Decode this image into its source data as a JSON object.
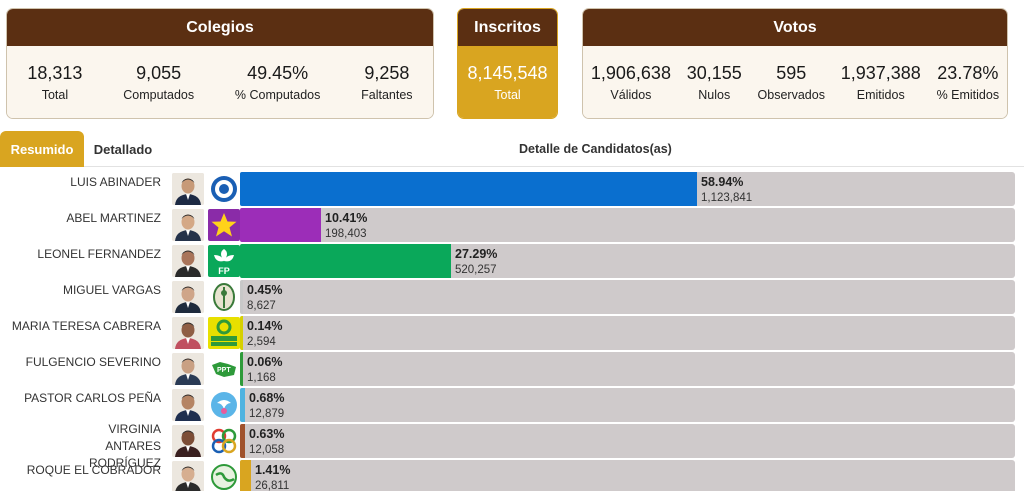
{
  "colegios": {
    "title": "Colegios",
    "stats": [
      {
        "value": "18,313",
        "label": "Total"
      },
      {
        "value": "9,055",
        "label": "Computados"
      },
      {
        "value": "49.45%",
        "label": "% Computados"
      },
      {
        "value": "9,258",
        "label": "Faltantes"
      }
    ]
  },
  "inscritos": {
    "title": "Inscritos",
    "value": "8,145,548",
    "label": "Total"
  },
  "votos": {
    "title": "Votos",
    "stats": [
      {
        "value": "1,906,638",
        "label": "Válidos"
      },
      {
        "value": "30,155",
        "label": "Nulos"
      },
      {
        "value": "595",
        "label": "Observados"
      },
      {
        "value": "1,937,388",
        "label": "Emitidos"
      },
      {
        "value": "23.78%",
        "label": "% Emitidos"
      }
    ]
  },
  "tabs": {
    "resumen": "Resumido",
    "detallado": "Detallado"
  },
  "section_title": "Detalle de Candidatos(as)",
  "candidates": [
    {
      "name": "LUIS ABINADER",
      "percent": 58.94,
      "percent_label": "58.94%",
      "votes": "1,123,841",
      "color": "#0a6fcf",
      "logo": "prm-logo",
      "logo_color": "#ffffff"
    },
    {
      "name": "ABEL MARTINEZ",
      "percent": 10.41,
      "percent_label": "10.41%",
      "votes": "198,403",
      "color": "#9c2db8",
      "logo": "star-logo",
      "logo_color": "#8a2ba8"
    },
    {
      "name": "LEONEL FERNANDEZ",
      "percent": 27.29,
      "percent_label": "27.29%",
      "votes": "520,257",
      "color": "#0aa85a",
      "logo": "fp-logo",
      "logo_color": "#0aa85a"
    },
    {
      "name": "MIGUEL VARGAS",
      "percent": 0.45,
      "percent_label": "0.45%",
      "votes": "8,627",
      "color": "#c8c8c8",
      "logo": "prd-logo",
      "logo_color": "#ffffff"
    },
    {
      "name": "MARIA TERESA CABRERA",
      "percent": 0.14,
      "percent_label": "0.14%",
      "votes": "2,594",
      "color": "#d6d000",
      "logo": "frente-amplio-logo",
      "logo_color": "#e8e000"
    },
    {
      "name": "FULGENCIO SEVERINO",
      "percent": 0.06,
      "percent_label": "0.06%",
      "votes": "1,168",
      "color": "#2e9a3a",
      "logo": "map-logo",
      "logo_color": "#ffffff"
    },
    {
      "name": "PASTOR CARLOS PEÑA",
      "percent": 0.68,
      "percent_label": "0.68%",
      "votes": "12,879",
      "color": "#4fb3e0",
      "logo": "dove-logo",
      "logo_color": "#ffffff"
    },
    {
      "name": "VIRGINIA ANTARES RODRÍGUEZ",
      "percent": 0.63,
      "percent_label": "0.63%",
      "votes": "12,058",
      "color": "#a0522d",
      "logo": "circles-logo",
      "logo_color": "#ffffff"
    },
    {
      "name": "ROQUE EL COBRADOR",
      "percent": 1.41,
      "percent_label": "1.41%",
      "votes": "26,811",
      "color": "#d9a520",
      "logo": "globe-logo",
      "logo_color": "#ffffff"
    }
  ]
}
